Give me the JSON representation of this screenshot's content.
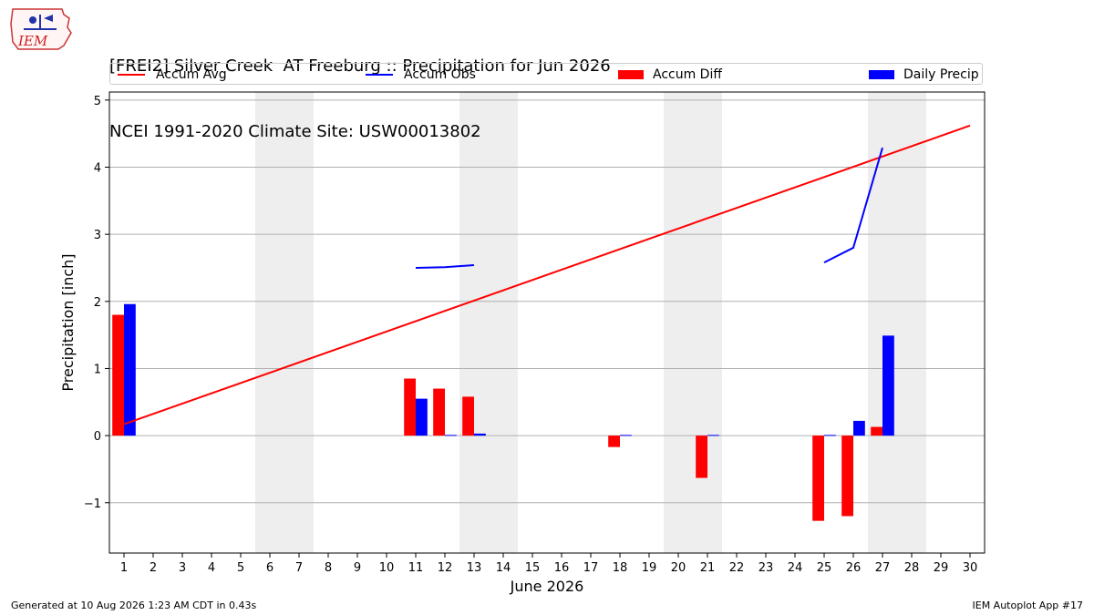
{
  "header": {
    "title_line1": "[FREI2] Silver Creek  AT Freeburg :: Precipitation for Jun 2026",
    "title_line2": "NCEI 1991-2020 Climate Site: USW00013802",
    "logo_text": "IEM"
  },
  "legend": {
    "accum_avg": "Accum Avg",
    "accum_obs": "Accum Obs",
    "accum_diff": "Accum Diff",
    "daily_precip": "Daily Precip"
  },
  "footer": {
    "generated": "Generated at 10 Aug 2026 1:23 AM CDT in 0.43s",
    "app": "IEM Autoplot App #17"
  },
  "colors": {
    "red": "#ff0000",
    "blue": "#0000ff",
    "weekend_band": "#eeeeee",
    "grid": "#b0b0b0"
  },
  "chart_data": {
    "type": "bar",
    "xlabel": "June 2026",
    "ylabel": "Precipitation [inch]",
    "xlim": [
      0.5,
      30.5
    ],
    "ylim": [
      -1.75,
      5.12
    ],
    "x_ticks": [
      1,
      2,
      3,
      4,
      5,
      6,
      7,
      8,
      9,
      10,
      11,
      12,
      13,
      14,
      15,
      16,
      17,
      18,
      19,
      20,
      21,
      22,
      23,
      24,
      25,
      26,
      27,
      28,
      29,
      30
    ],
    "y_ticks": [
      -1,
      0,
      1,
      2,
      3,
      4,
      5
    ],
    "y_tick_labels": [
      "−1",
      "0",
      "1",
      "2",
      "3",
      "4",
      "5"
    ],
    "grid": "horizontal",
    "weekend_shading": [
      [
        5.5,
        7.5
      ],
      [
        12.5,
        14.5
      ],
      [
        19.5,
        21.5
      ],
      [
        26.5,
        28.5
      ]
    ],
    "accum_avg": {
      "name": "Accum Avg",
      "x": [
        1,
        30
      ],
      "y": [
        0.17,
        4.62
      ]
    },
    "accum_obs_segments": [
      {
        "x": [
          11,
          12,
          13
        ],
        "y": [
          2.5,
          2.51,
          2.54
        ]
      },
      {
        "x": [
          25,
          26,
          27
        ],
        "y": [
          2.58,
          2.8,
          4.29
        ]
      }
    ],
    "accum_diff": {
      "name": "Accum Diff",
      "x": [
        1,
        11,
        12,
        13,
        18,
        21,
        25,
        26,
        27
      ],
      "values": [
        1.8,
        0.85,
        0.7,
        0.58,
        -0.17,
        -0.63,
        -1.27,
        -1.2,
        0.13
      ]
    },
    "daily_precip": {
      "name": "Daily Precip",
      "x": [
        1,
        11,
        12,
        13,
        18,
        21,
        25,
        26,
        27
      ],
      "values": [
        1.96,
        0.55,
        0.01,
        0.03,
        0.01,
        0.01,
        0.01,
        0.22,
        1.49
      ]
    }
  }
}
